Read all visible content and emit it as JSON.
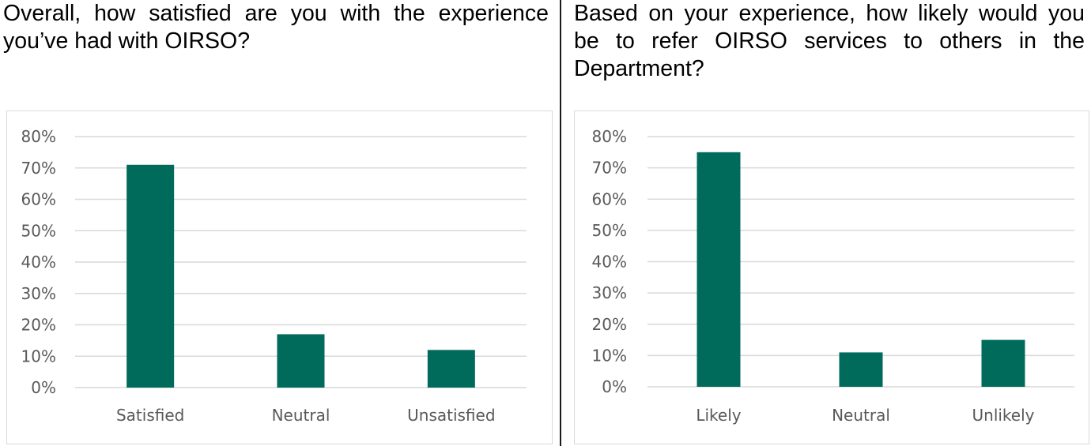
{
  "panels": [
    {
      "question": "Overall, how satisfied are you with the experience you’ve had with OIRSO?"
    },
    {
      "question": "Based on your experience, how likely would you be to refer OIRSO services to others in the Department?"
    }
  ],
  "colors": {
    "bar": "#006b5a",
    "grid": "#d9d9d9",
    "text": "#595959"
  },
  "chart_data": [
    {
      "type": "bar",
      "categories": [
        "Satisfied",
        "Neutral",
        "Unsatisfied"
      ],
      "values": [
        71,
        17,
        12
      ],
      "ylim": [
        0,
        80
      ],
      "yticks": [
        "0%",
        "10%",
        "20%",
        "30%",
        "40%",
        "50%",
        "60%",
        "70%",
        "80%"
      ],
      "grid": true,
      "title": "",
      "xlabel": "",
      "ylabel": ""
    },
    {
      "type": "bar",
      "categories": [
        "Likely",
        "Neutral",
        "Unlikely"
      ],
      "values": [
        75,
        11,
        15
      ],
      "ylim": [
        0,
        80
      ],
      "yticks": [
        "0%",
        "10%",
        "20%",
        "30%",
        "40%",
        "50%",
        "60%",
        "70%",
        "80%"
      ],
      "grid": true,
      "title": "",
      "xlabel": "",
      "ylabel": ""
    }
  ]
}
